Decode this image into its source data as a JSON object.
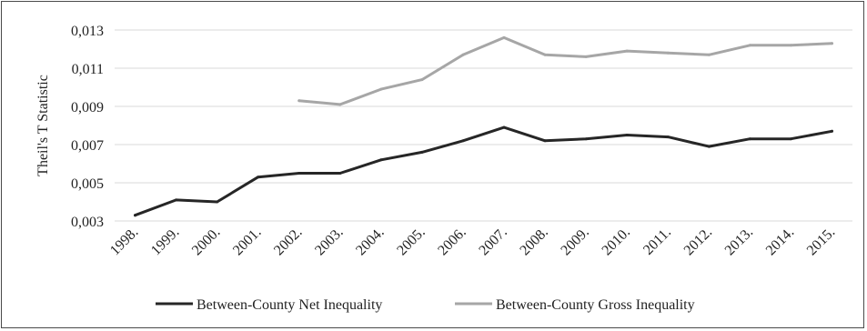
{
  "chart_data": {
    "type": "line",
    "title": "",
    "xlabel": "",
    "ylabel": "Theil's T Statistic",
    "ylim": [
      0.003,
      0.013
    ],
    "yticks": [
      "0,003",
      "0,005",
      "0,007",
      "0,009",
      "0,011",
      "0,013"
    ],
    "ytick_values": [
      0.003,
      0.005,
      0.007,
      0.009,
      0.011,
      0.013
    ],
    "grid": true,
    "legend_position": "bottom",
    "categories": [
      "1998.",
      "1999.",
      "2000.",
      "2001.",
      "2002.",
      "2003.",
      "2004.",
      "2005.",
      "2006.",
      "2007.",
      "2008.",
      "2009.",
      "2010.",
      "2011.",
      "2012.",
      "2013.",
      "2014.",
      "2015."
    ],
    "series": [
      {
        "name": "Between-County Net Inequality",
        "color": "#262626",
        "values": [
          0.0033,
          0.0041,
          0.004,
          0.0053,
          0.0055,
          0.0055,
          0.0062,
          0.0066,
          0.0072,
          0.0079,
          0.0072,
          0.0073,
          0.0075,
          0.0074,
          0.0069,
          0.0073,
          0.0073,
          0.0077
        ]
      },
      {
        "name": "Between-County Gross Inequality",
        "color": "#a6a6a6",
        "values": [
          null,
          null,
          null,
          null,
          0.0093,
          0.0091,
          0.0099,
          0.0104,
          0.0117,
          0.0126,
          0.0117,
          0.0116,
          0.0119,
          0.0118,
          0.0117,
          0.0122,
          0.0122,
          0.0123
        ]
      }
    ]
  }
}
